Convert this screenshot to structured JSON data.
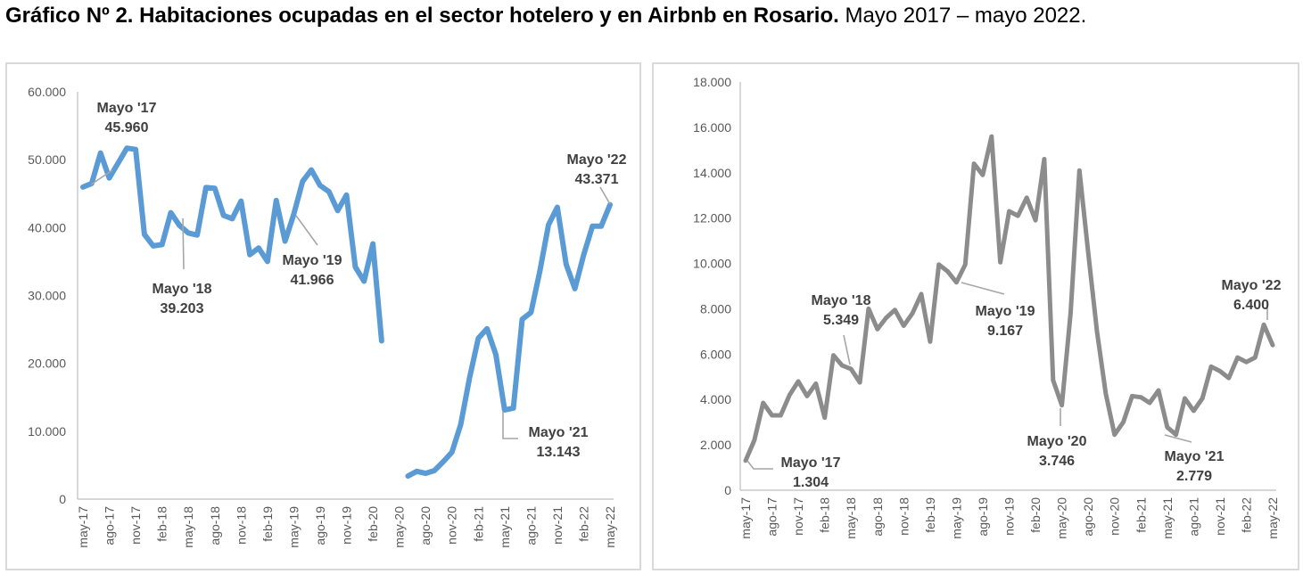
{
  "title": {
    "bold": "Gráfico Nº 2. Habitaciones ocupadas en el sector hotelero y en Airbnb en Rosario.",
    "normal": " Mayo 2017 – mayo 2022."
  },
  "chart_data": [
    {
      "type": "line",
      "title": "",
      "color": "#5b9bd5",
      "ylim": [
        0,
        60000
      ],
      "yticks": [
        "0",
        "10.000",
        "20.000",
        "30.000",
        "40.000",
        "50.000",
        "60.000"
      ],
      "xticks": [
        "may-17",
        "ago-17",
        "nov-17",
        "feb-18",
        "may-18",
        "ago-18",
        "nov-18",
        "feb-19",
        "may-19",
        "ago-19",
        "nov-19",
        "feb-20",
        "may-20",
        "ago-20",
        "nov-20",
        "feb-21",
        "may-21",
        "ago-21",
        "nov-21",
        "feb-22",
        "may-22"
      ],
      "series": [
        {
          "values": [
            45960,
            46500,
            51000,
            47300,
            49500,
            51700,
            51500,
            39000,
            37300,
            37500,
            42200,
            40300,
            39203,
            38900,
            45900,
            45800,
            41800,
            41300,
            43900,
            36000,
            37000,
            35000,
            44000,
            38000,
            41966,
            46800,
            48500,
            46200,
            45300,
            42500,
            44800,
            34200,
            32100,
            37600,
            23300,
            null,
            null,
            3400,
            4100,
            3800,
            4200,
            5500,
            6900,
            11000,
            17800,
            23700,
            25100,
            21300,
            13143,
            13400,
            26500,
            27500,
            33500,
            40400,
            43000,
            34600,
            31000,
            36000,
            40200,
            40200,
            43371
          ]
        }
      ],
      "annotations": [
        {
          "line1": "Mayo '17",
          "line2": "45.960"
        },
        {
          "line1": "Mayo '18",
          "line2": "39.203"
        },
        {
          "line1": "Mayo '19",
          "line2": "41.966"
        },
        {
          "line1": "Mayo '21",
          "line2": "13.143"
        },
        {
          "line1": "Mayo '22",
          "line2": "43.371"
        }
      ]
    },
    {
      "type": "line",
      "title": "",
      "color": "#8c8c8c",
      "ylim": [
        0,
        18000
      ],
      "yticks": [
        "0",
        "2.000",
        "4.000",
        "6.000",
        "8.000",
        "10.000",
        "12.000",
        "14.000",
        "16.000",
        "18.000"
      ],
      "xticks": [
        "may-17",
        "ago-17",
        "nov-17",
        "feb-18",
        "may-18",
        "ago-18",
        "nov-18",
        "feb-19",
        "may-19",
        "ago-19",
        "nov-19",
        "feb-20",
        "may-20",
        "ago-20",
        "nov-20",
        "feb-21",
        "may-21",
        "ago-21",
        "nov-21",
        "feb-22",
        "may-22"
      ],
      "series": [
        {
          "values": [
            1304,
            2200,
            3850,
            3300,
            3300,
            4200,
            4800,
            4150,
            4700,
            3200,
            5950,
            5500,
            5349,
            4750,
            8000,
            7100,
            7600,
            7950,
            7250,
            7800,
            8650,
            6550,
            9950,
            9650,
            9167,
            9950,
            14400,
            13900,
            15600,
            10050,
            12300,
            12100,
            12900,
            11900,
            14600,
            4850,
            3746,
            7800,
            14100,
            10500,
            7000,
            4250,
            2450,
            3000,
            4150,
            4100,
            3850,
            4400,
            2779,
            2450,
            4050,
            3500,
            4050,
            5450,
            5250,
            4950,
            5850,
            5650,
            5850,
            7300,
            6400
          ]
        }
      ],
      "annotations": [
        {
          "line1": "Mayo '17",
          "line2": "1.304"
        },
        {
          "line1": "Mayo '18",
          "line2": "5.349"
        },
        {
          "line1": "Mayo '19",
          "line2": "9.167"
        },
        {
          "line1": "Mayo '20",
          "line2": "3.746"
        },
        {
          "line1": "Mayo '21",
          "line2": "2.779"
        },
        {
          "line1": "Mayo '22",
          "line2": "6.400"
        }
      ]
    }
  ]
}
